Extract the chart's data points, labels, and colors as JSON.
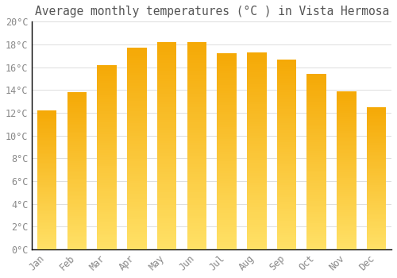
{
  "title": "Average monthly temperatures (°C ) in Vista Hermosa",
  "months": [
    "Jan",
    "Feb",
    "Mar",
    "Apr",
    "May",
    "Jun",
    "Jul",
    "Aug",
    "Sep",
    "Oct",
    "Nov",
    "Dec"
  ],
  "values": [
    12.2,
    13.8,
    16.2,
    17.7,
    18.2,
    18.2,
    17.2,
    17.3,
    16.7,
    15.4,
    13.9,
    12.5
  ],
  "bar_color_top": "#F5A800",
  "bar_color_bottom": "#FFD966",
  "background_color": "#FFFFFF",
  "grid_color": "#DDDDDD",
  "text_color": "#888888",
  "axis_color": "#000000",
  "ylim": [
    0,
    20
  ],
  "ytick_step": 2,
  "title_fontsize": 10.5,
  "tick_fontsize": 8.5
}
